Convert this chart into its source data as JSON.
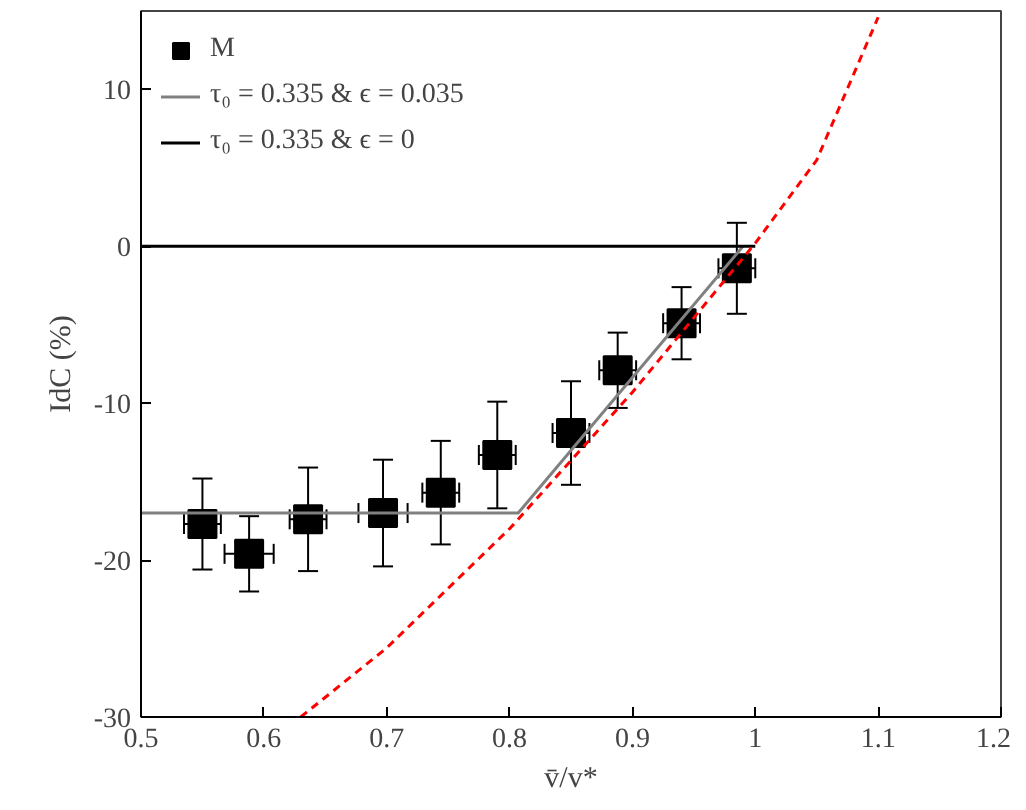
{
  "chart_data": {
    "type": "scatter",
    "xlabel": "v̄/v*",
    "ylabel": "IdC (%)",
    "xlim": [
      0.5,
      1.2
    ],
    "ylim": [
      -30,
      15
    ],
    "xticks": [
      0.5,
      0.6,
      0.7,
      0.8,
      0.9,
      1,
      1.1,
      1.2
    ],
    "yticks": [
      -30,
      -20,
      -10,
      0,
      10
    ],
    "grid": false,
    "legend": "top left",
    "series": [
      {
        "name": "M",
        "marker": "square",
        "color": "#000000",
        "x": [
          0.55,
          0.588,
          0.636,
          0.697,
          0.744,
          0.79,
          0.85,
          0.888,
          0.94,
          0.985
        ],
        "values": [
          -17.7,
          -19.6,
          -17.4,
          -17,
          -15.7,
          -13.3,
          -11.9,
          -7.9,
          -4.9,
          -1.4
        ],
        "errors": [
          2.9,
          2.4,
          3.3,
          3.4,
          3.3,
          3.4,
          3.3,
          2.4,
          2.3,
          2.9
        ],
        "xerrors": [
          0.015,
          0.02,
          0.015,
          0.02,
          0.015,
          0.015,
          0.015,
          0.015,
          0.015,
          0.015
        ]
      },
      {
        "name": "τ₀ = 0.335 & ϵ = 0.035",
        "type": "line",
        "color": "#808080",
        "x": [
          0.5,
          0.807,
          0.99
        ],
        "values": [
          -17,
          -17,
          0
        ]
      },
      {
        "name": "τ₀ = 0.335 & ϵ = 0",
        "type": "line",
        "color": "#000000",
        "x": [
          0.5,
          1.0
        ],
        "values": [
          0,
          0
        ]
      },
      {
        "type": "line",
        "color": "#ff0000",
        "line_style": "dashed",
        "x": [
          0.63,
          0.7,
          0.8,
          0.9,
          1.0,
          1.05,
          1.1
        ],
        "values": [
          -30,
          -25.6,
          -18,
          -9.3,
          0.2,
          5.5,
          14.6
        ]
      }
    ]
  }
}
